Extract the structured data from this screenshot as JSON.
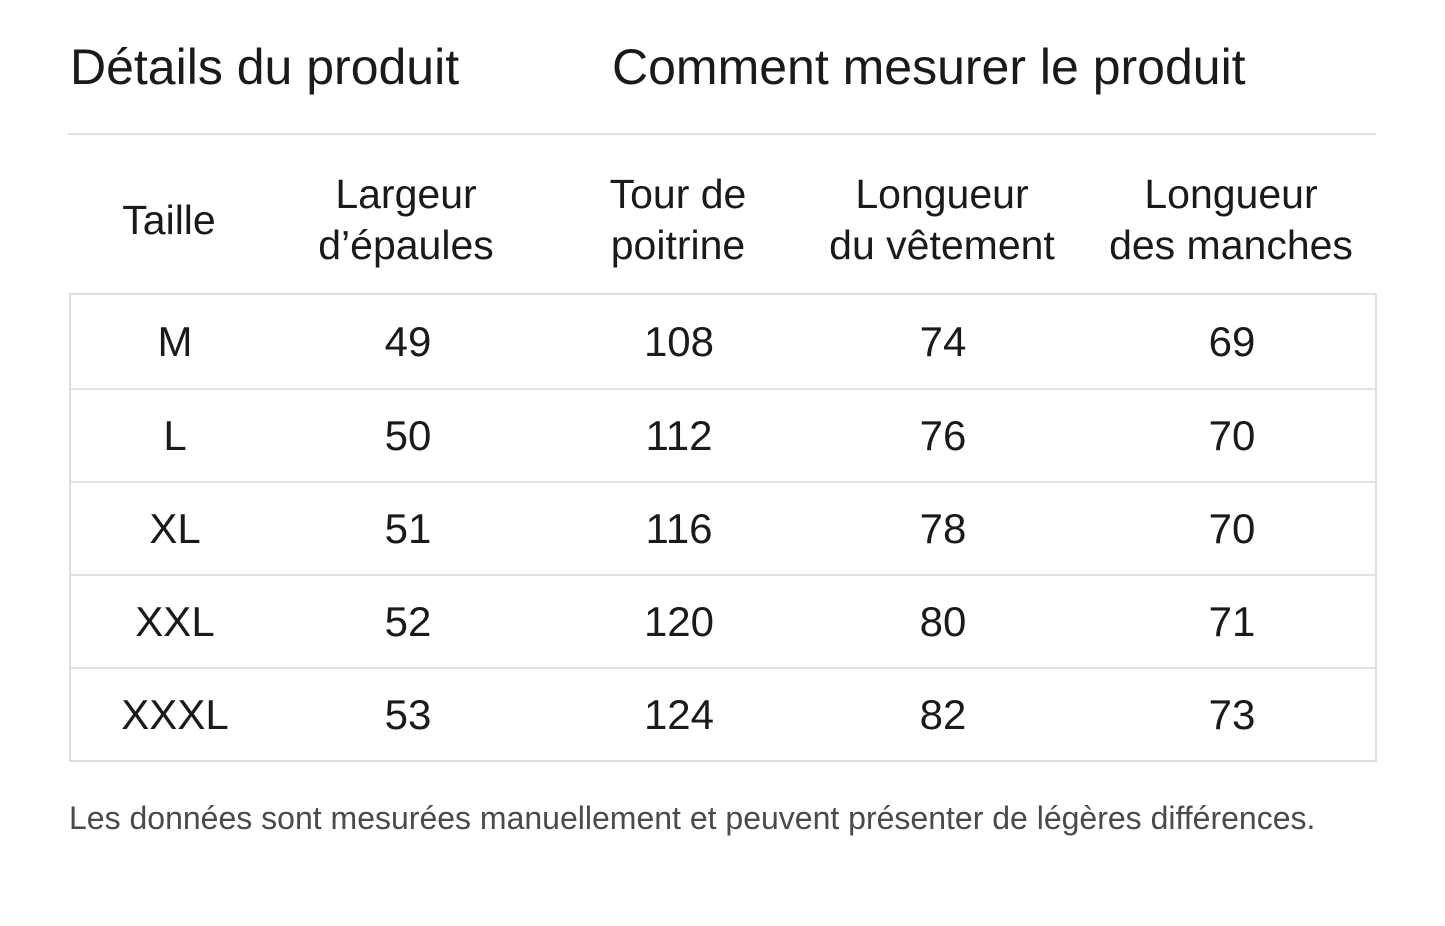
{
  "tabs": [
    {
      "label": "Détails du produit"
    },
    {
      "label": "Comment mesurer le produit"
    }
  ],
  "table": {
    "headers": [
      [
        "Taille"
      ],
      [
        "Largeur",
        "d’épaules"
      ],
      [
        "Tour de",
        "poitrine"
      ],
      [
        "Longueur",
        "du vêtement"
      ],
      [
        "Longueur",
        "des manches"
      ]
    ],
    "rows": [
      [
        "M",
        "49",
        "108",
        "74",
        "69"
      ],
      [
        "L",
        "50",
        "112",
        "76",
        "70"
      ],
      [
        "XL",
        "51",
        "116",
        "78",
        "70"
      ],
      [
        "XXL",
        "52",
        "120",
        "80",
        "71"
      ],
      [
        "XXXL",
        "53",
        "124",
        "82",
        "73"
      ]
    ]
  },
  "note": "Les données sont mesurées manuellement et peuvent présenter de légères différences."
}
